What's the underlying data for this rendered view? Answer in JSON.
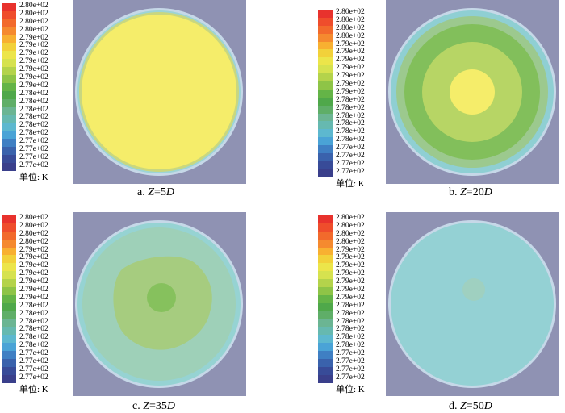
{
  "legend": {
    "ticks": [
      "2.80e+02",
      "2.80e+02",
      "2.80e+02",
      "2.80e+02",
      "2.79e+02",
      "2.79e+02",
      "2.79e+02",
      "2.79e+02",
      "2.79e+02",
      "2.79e+02",
      "2.79e+02",
      "2.78e+02",
      "2.78e+02",
      "2.78e+02",
      "2.78e+02",
      "2.78e+02",
      "2.78e+02",
      "2.77e+02",
      "2.77e+02",
      "2.77e+02",
      "2.77e+02"
    ],
    "colors": [
      "#e8322d",
      "#ef4d2c",
      "#f26a2c",
      "#f58a2f",
      "#f8b031",
      "#f2d13a",
      "#ece54a",
      "#d6e24f",
      "#b4d34b",
      "#8ec447",
      "#64b447",
      "#4fa84a",
      "#5fae68",
      "#6bb593",
      "#66b9b0",
      "#5db8cf",
      "#4aa3d6",
      "#3f7fc3",
      "#3a62ac",
      "#384b98",
      "#3a3f8b"
    ],
    "unit": "单位: K"
  },
  "panels": [
    {
      "prefix": "a. ",
      "var": "Z",
      "eq": "=5",
      "suffix": "D"
    },
    {
      "prefix": "b. ",
      "var": "Z",
      "eq": "=20",
      "suffix": "D"
    },
    {
      "prefix": "c. ",
      "var": "Z",
      "eq": "=35",
      "suffix": "D"
    },
    {
      "prefix": "d. ",
      "var": "Z",
      "eq": "=50",
      "suffix": "D"
    }
  ]
}
